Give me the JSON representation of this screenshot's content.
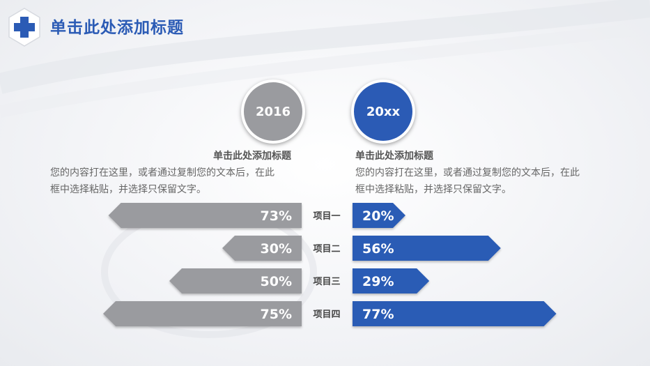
{
  "header": {
    "title": "单击此处添加标题",
    "logo_icon": "medical-cross-icon"
  },
  "columns": {
    "left": {
      "year": "2016",
      "title": "单击此处添加标题",
      "body_line1": "您的内容打在这里，或者通过复制您的文本后，在此",
      "body_line2": "框中选择粘贴，并选择只保留文字。"
    },
    "right": {
      "year": "20xx",
      "title": "单击此处添加标题",
      "body_line1": "您的内容打在这里，或者通过复制您的文本后，在此",
      "body_line2": "框中选择粘贴，并选择只保留文字。"
    }
  },
  "colors": {
    "gray": "#9a9b9f",
    "blue": "#2b5bb5",
    "label": "#444444"
  },
  "chart_data": {
    "type": "bar",
    "orientation": "horizontal-diverging",
    "categories": [
      "项目一",
      "项目二",
      "项目三",
      "项目四"
    ],
    "series": [
      {
        "name": "2016",
        "values": [
          73,
          30,
          50,
          75
        ],
        "labels": [
          "73%",
          "30%",
          "50%",
          "75%"
        ]
      },
      {
        "name": "20xx",
        "values": [
          20,
          56,
          29,
          77
        ],
        "labels": [
          "20%",
          "56%",
          "29%",
          "77%"
        ]
      }
    ],
    "xlim": [
      0,
      100
    ]
  }
}
